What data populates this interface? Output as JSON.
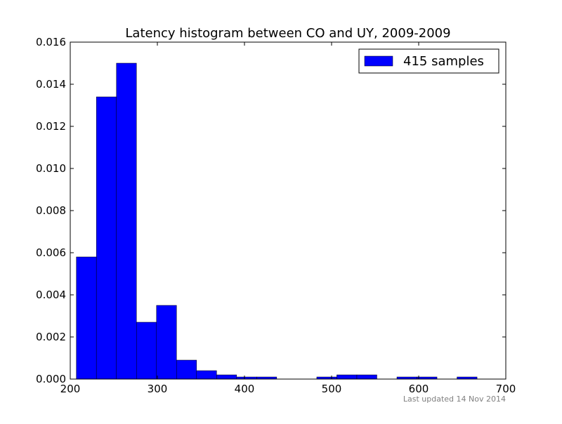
{
  "chart_data": {
    "type": "bar",
    "title": "Latency histogram between CO and UY, 2009-2009",
    "xlabel": "",
    "ylabel": "",
    "xlim": [
      200,
      700
    ],
    "ylim": [
      0,
      0.016
    ],
    "x_ticks": [
      200,
      300,
      400,
      500,
      600,
      700
    ],
    "x_tick_labels": [
      "200",
      "300",
      "400",
      "500",
      "600",
      "700"
    ],
    "y_ticks": [
      0.0,
      0.002,
      0.004,
      0.006,
      0.008,
      0.01,
      0.012,
      0.014,
      0.016
    ],
    "y_tick_labels": [
      "0.000",
      "0.002",
      "0.004",
      "0.006",
      "0.008",
      "0.010",
      "0.012",
      "0.014",
      "0.016"
    ],
    "bin_width": 23,
    "bins": [
      {
        "x0": 207,
        "x1": 230,
        "value": 0.0058
      },
      {
        "x0": 230,
        "x1": 253,
        "value": 0.0134
      },
      {
        "x0": 253,
        "x1": 276,
        "value": 0.015
      },
      {
        "x0": 276,
        "x1": 299,
        "value": 0.0027
      },
      {
        "x0": 299,
        "x1": 322,
        "value": 0.0035
      },
      {
        "x0": 322,
        "x1": 345,
        "value": 0.0009
      },
      {
        "x0": 345,
        "x1": 368,
        "value": 0.0004
      },
      {
        "x0": 368,
        "x1": 391,
        "value": 0.0002
      },
      {
        "x0": 391,
        "x1": 414,
        "value": 0.0001
      },
      {
        "x0": 414,
        "x1": 437,
        "value": 0.0001
      },
      {
        "x0": 437,
        "x1": 460,
        "value": 0.0
      },
      {
        "x0": 460,
        "x1": 483,
        "value": 0.0
      },
      {
        "x0": 483,
        "x1": 506,
        "value": 0.0001
      },
      {
        "x0": 506,
        "x1": 529,
        "value": 0.0002
      },
      {
        "x0": 529,
        "x1": 552,
        "value": 0.0002
      },
      {
        "x0": 552,
        "x1": 575,
        "value": 0.0
      },
      {
        "x0": 575,
        "x1": 598,
        "value": 0.0001
      },
      {
        "x0": 598,
        "x1": 621,
        "value": 0.0001
      },
      {
        "x0": 621,
        "x1": 644,
        "value": 0.0
      },
      {
        "x0": 644,
        "x1": 667,
        "value": 0.0001
      }
    ],
    "series": [
      {
        "name": "415 samples",
        "color": "#0000ff"
      }
    ],
    "legend_position": "top-right",
    "grid": false
  },
  "footer": {
    "updated": "Last updated 14 Nov 2014"
  }
}
